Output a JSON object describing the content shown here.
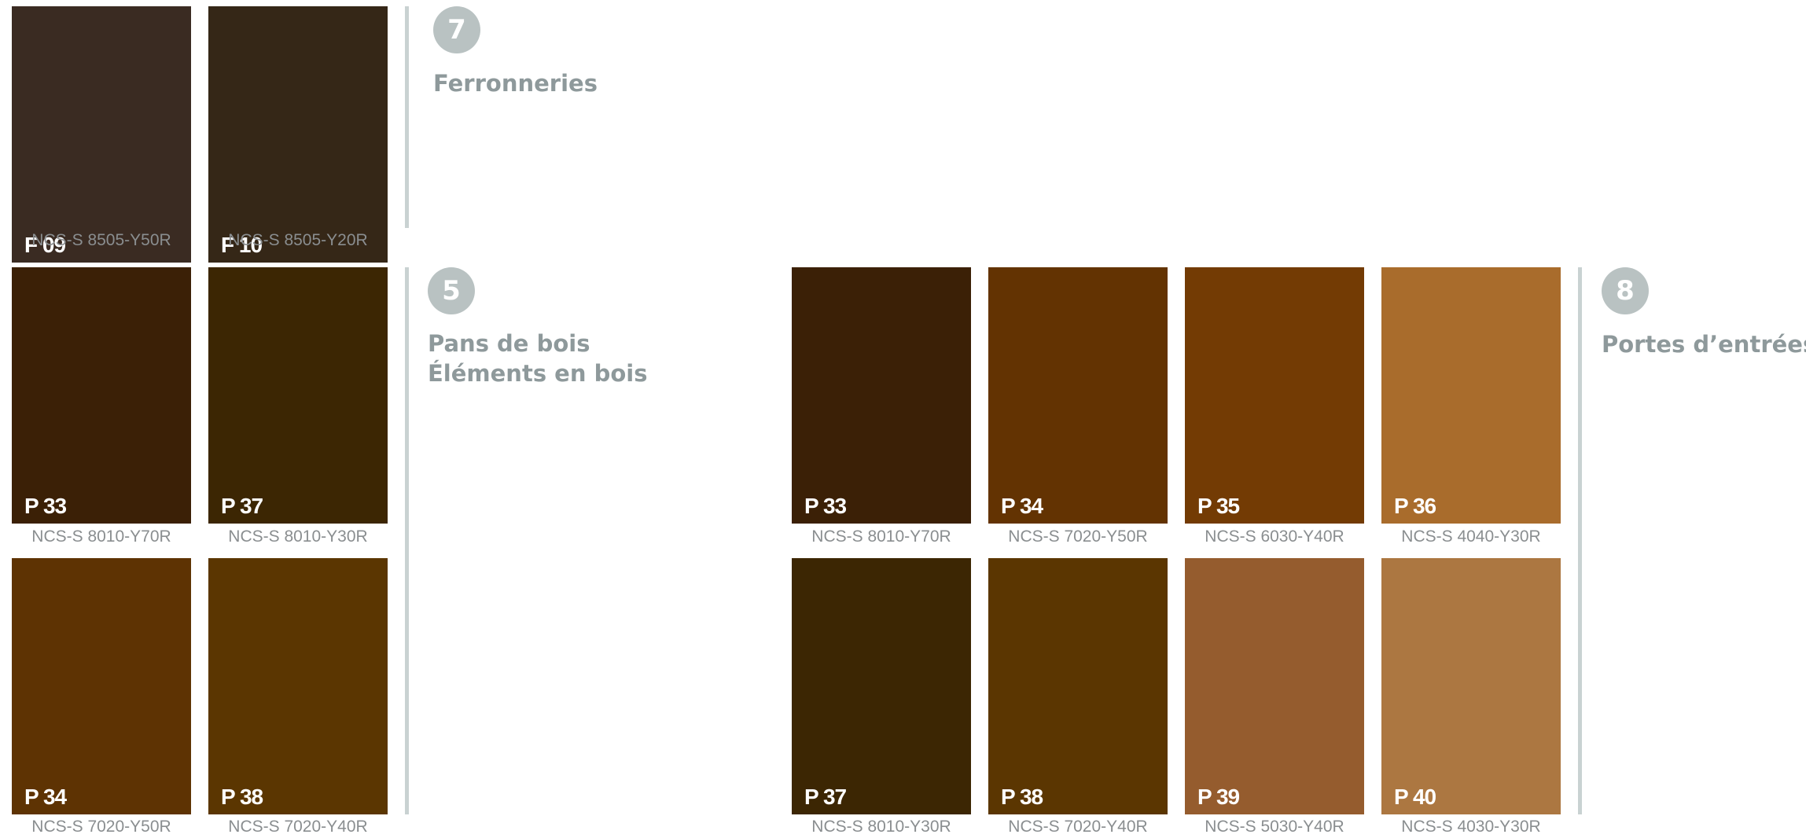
{
  "sections": {
    "s7": {
      "number": "7",
      "title": "Ferronneries"
    },
    "s5": {
      "number": "5",
      "title_line1": "Pans de bois",
      "title_line2": "Éléments en bois"
    },
    "s8": {
      "number": "8",
      "title": "Portes d’entrées"
    }
  },
  "swatches": [
    {
      "code": "F 09",
      "ncs": "NCS-S 8505-Y50R",
      "color": "#3a2b22"
    },
    {
      "code": "F 10",
      "ncs": "NCS-S 8505-Y20R",
      "color": "#352717"
    },
    {
      "code": "P 33",
      "ncs": "NCS-S 8010-Y70R",
      "color": "#3b2006"
    },
    {
      "code": "P 37",
      "ncs": "NCS-S 8010-Y30R",
      "color": "#3c2603"
    },
    {
      "code": "P 34",
      "ncs": "NCS-S 7020-Y50R",
      "color": "#5e3303"
    },
    {
      "code": "P 38",
      "ncs": "NCS-S 7020-Y40R",
      "color": "#5b3601"
    },
    {
      "code": "P 33",
      "ncs": "NCS-S 8010-Y70R",
      "color": "#3b2006"
    },
    {
      "code": "P 34",
      "ncs": "NCS-S 7020-Y50R",
      "color": "#633302"
    },
    {
      "code": "P 35",
      "ncs": "NCS-S 6030-Y40R",
      "color": "#733b04"
    },
    {
      "code": "P 36",
      "ncs": "NCS-S 4040-Y30R",
      "color": "#a96c2c"
    },
    {
      "code": "P 37",
      "ncs": "NCS-S 8010-Y30R",
      "color": "#3c2603"
    },
    {
      "code": "P 38",
      "ncs": "NCS-S 7020-Y40R",
      "color": "#5b3601"
    },
    {
      "code": "P 39",
      "ncs": "NCS-S 5030-Y40R",
      "color": "#955c2e"
    },
    {
      "code": "P 40",
      "ncs": "NCS-S 4030-Y30R",
      "color": "#ac7741"
    }
  ]
}
